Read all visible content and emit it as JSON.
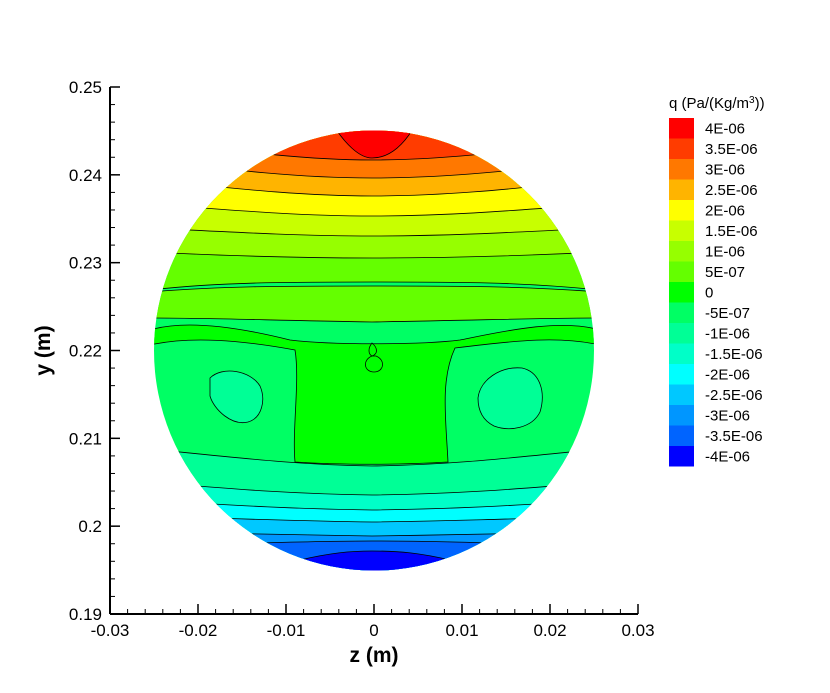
{
  "chart_data": {
    "type": "heatmap",
    "xlabel": "z  (m)",
    "ylabel": "y  (m)",
    "xlim": [
      -0.03,
      0.03
    ],
    "ylim": [
      0.19,
      0.25
    ],
    "x_ticks": [
      "-0.03",
      "-0.02",
      "-0.01",
      "0",
      "0.01",
      "0.02",
      "0.03"
    ],
    "y_ticks": [
      "0.19",
      "0.2",
      "0.21",
      "0.22",
      "0.23",
      "0.24",
      "0.25"
    ],
    "domain": {
      "shape": "circle",
      "center_z": 0.0,
      "center_y": 0.22,
      "radius": 0.025
    },
    "colorbar": {
      "title": "q  (Pa/(Kg/m",
      "title_sup": "3",
      "title_end": "))",
      "levels": [
        "4E-06",
        "3.5E-06",
        "3E-06",
        "2.5E-06",
        "2E-06",
        "1.5E-06",
        "1E-06",
        "5E-07",
        "0",
        "-5E-07",
        "-1E-06",
        "-1.5E-06",
        "-2E-06",
        "-2.5E-06",
        "-3E-06",
        "-3.5E-06",
        "-4E-06"
      ],
      "level_values": [
        4e-06,
        3.5e-06,
        3e-06,
        2.5e-06,
        2e-06,
        1.5e-06,
        1e-06,
        5e-07,
        0,
        -5e-07,
        -1e-06,
        -1.5e-06,
        -2e-06,
        -2.5e-06,
        -3e-06,
        -3.5e-06,
        -4e-06
      ],
      "colors": [
        "#ff0000",
        "#ff3c00",
        "#ff7800",
        "#ffb400",
        "#ffff00",
        "#c8ff00",
        "#96ff00",
        "#64ff00",
        "#00ff00",
        "#00ff64",
        "#00ff96",
        "#00ffc8",
        "#00ffff",
        "#00c8ff",
        "#0096ff",
        "#0064ff",
        "#0000ff"
      ]
    }
  }
}
